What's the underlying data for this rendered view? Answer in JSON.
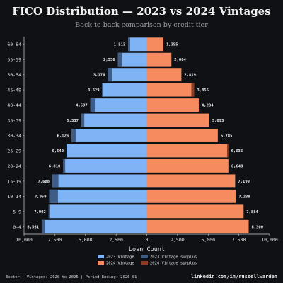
{
  "header": {
    "title": "FICO Distribution — 2023 vs 2024 Vintages",
    "subtitle": "Back-to-back comparison by credit tier"
  },
  "footer": {
    "left": "Exeter | Vintages: 2020 to 2025 | Period Ending: 2026-01",
    "right": "linkedin.com/in/russellwarden"
  },
  "colors": {
    "background": "#0f1115",
    "v2023": "#7eb3f5",
    "v2023_surplus": "#3f5c86",
    "v2024": "#f58b5f",
    "v2024_surplus": "#8a3d24",
    "axis": "#cfcfcf"
  },
  "chart_data": {
    "type": "bar",
    "orientation": "horizontal-back-to-back",
    "title": "FICO Distribution — 2023 vs 2024 Vintages",
    "subtitle": "Back-to-back comparison by credit tier",
    "xlabel": "Loan Count",
    "ylabel": "",
    "xlim": [
      -10000,
      10000
    ],
    "x_ticks": [
      -10000,
      -7500,
      -5000,
      -2500,
      0,
      2500,
      5000,
      7500,
      10000
    ],
    "x_tick_labels": [
      "10,000",
      "7,500",
      "5,000",
      "2,500",
      "0",
      "2,500",
      "5,000",
      "7,500",
      "10,000"
    ],
    "categories": [
      "60-64",
      "55-59",
      "50-54",
      "45-49",
      "40-44",
      "35-39",
      "30-34",
      "25-29",
      "20-24",
      "15-19",
      "10-14",
      "5-9",
      "0-4"
    ],
    "series": [
      {
        "name": "2023 Vintage",
        "side": "left",
        "values": [
          1513,
          2356,
          3176,
          3629,
          4597,
          5337,
          6126,
          6540,
          6810,
          7688,
          7950,
          7992,
          8561
        ],
        "labels": [
          "1,513",
          "2,356",
          "3,176",
          "3,629",
          "4,597",
          "5,337",
          "6,126",
          "6,540",
          "6,810",
          "7,688",
          "7,950",
          "7,992",
          "8,561"
        ]
      },
      {
        "name": "2024 Vintage",
        "side": "right",
        "values": [
          1355,
          2004,
          2819,
          3855,
          4234,
          5093,
          5785,
          6636,
          6648,
          7199,
          7238,
          7884,
          8300
        ],
        "labels": [
          "1,355",
          "2,004",
          "2,819",
          "3,855",
          "4,234",
          "5,093",
          "5,785",
          "6,636",
          "6,648",
          "7,199",
          "7,238",
          "7,884",
          "8,300"
        ]
      }
    ],
    "legend": {
      "placement": "bottom-center",
      "entries": [
        "2023 Vintage",
        "2024 Vintage",
        "2023 Vintage surplus",
        "2024 Vintage surplus"
      ]
    },
    "grid": false
  }
}
